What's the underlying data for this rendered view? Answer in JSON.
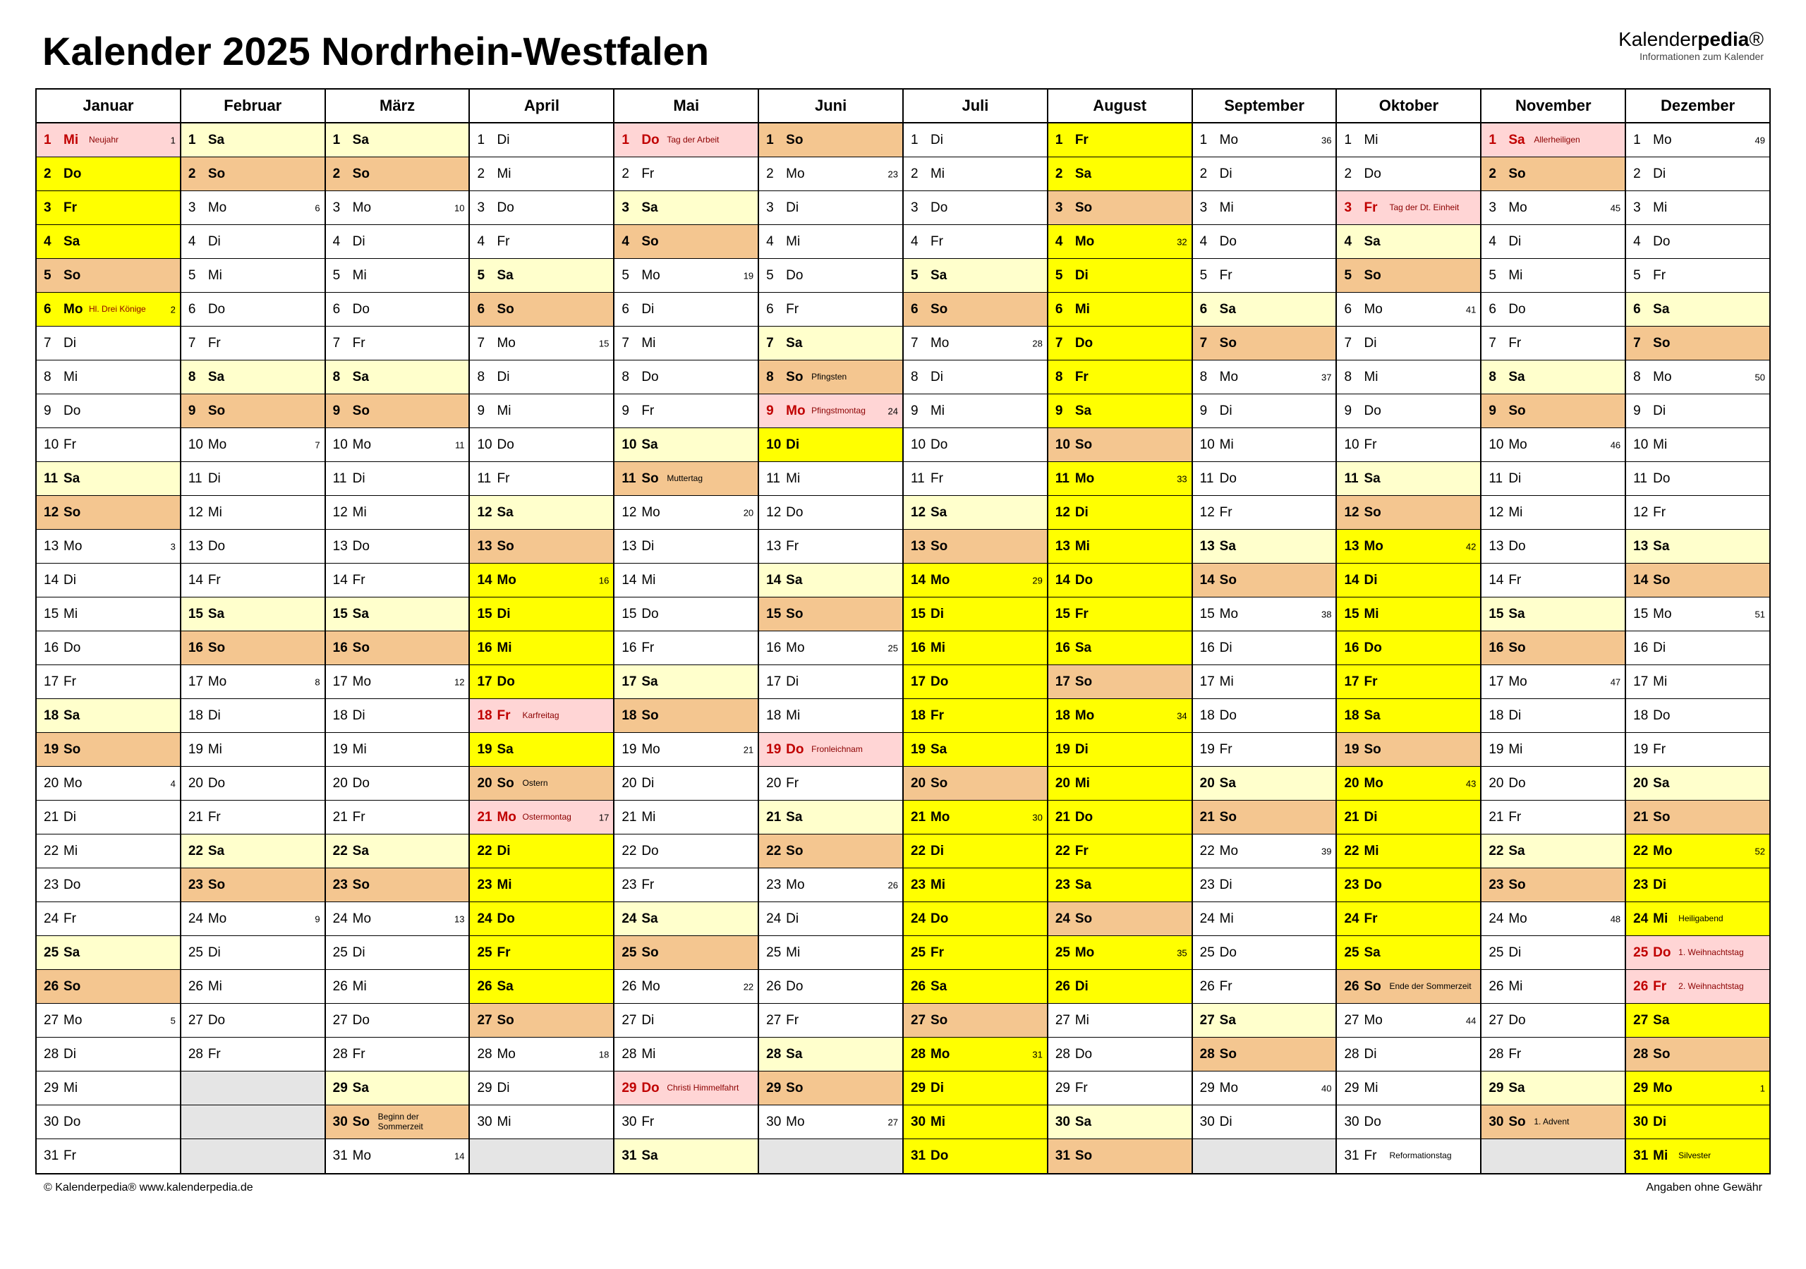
{
  "title": "Kalender 2025 Nordrhein-Westfalen",
  "logo": {
    "left": "Kalender",
    "bold": "pedia",
    "reg": "®",
    "sub": "Informationen zum Kalender"
  },
  "footer": {
    "left": "© Kalenderpedia®   www.kalenderpedia.de",
    "right": "Angaben ohne Gewähr"
  },
  "colors": {
    "yellow": "#ffff00",
    "lightyellow": "#ffffcc",
    "orange": "#f4c690",
    "darkorange": "#eeb070",
    "pink": "#ffd5d5",
    "grey": "#e5e5e5"
  },
  "weekdays": [
    "Mo",
    "Di",
    "Mi",
    "Do",
    "Fr",
    "Sa",
    "So"
  ],
  "months": [
    {
      "name": "Januar",
      "start": 2,
      "days": 31,
      "holidays": {
        "1": {
          "t": "Neujahr",
          "c": "pink",
          "r": 1,
          "w": 1
        },
        "6": {
          "t": "Hl. Drei Könige",
          "c": "yellow",
          "w": 2
        }
      },
      "vac": {
        "2": "yellow",
        "3": "yellow",
        "4": "yellow",
        "5": "orange",
        "6": "yellow"
      },
      "weeks": {
        "13": 3,
        "20": 4,
        "27": 5
      }
    },
    {
      "name": "Februar",
      "start": 5,
      "days": 28,
      "weeks": {
        "3": 6,
        "10": 7,
        "17": 8,
        "24": 9
      }
    },
    {
      "name": "März",
      "start": 5,
      "days": 31,
      "holidays": {
        "30": {
          "t": "Beginn der Sommerzeit",
          "c": "orange",
          "lb": 1
        }
      },
      "weeks": {
        "3": 10,
        "10": 11,
        "17": 12,
        "24": 13,
        "31": 14
      }
    },
    {
      "name": "April",
      "start": 1,
      "days": 30,
      "holidays": {
        "18": {
          "t": "Karfreitag",
          "c": "pink",
          "r": 1
        },
        "20": {
          "t": "Ostern",
          "c": "orange",
          "lb": 1
        },
        "21": {
          "t": "Ostermontag",
          "c": "pink",
          "r": 1,
          "w": 17
        }
      },
      "vac": {
        "14": "yellow",
        "15": "yellow",
        "16": "yellow",
        "17": "yellow",
        "19": "yellow",
        "22": "yellow",
        "23": "yellow",
        "24": "yellow",
        "25": "yellow",
        "26": "yellow",
        "27": "orange"
      },
      "weeks": {
        "7": 15,
        "14": 16,
        "28": 18
      }
    },
    {
      "name": "Mai",
      "start": 3,
      "days": 31,
      "holidays": {
        "1": {
          "t": "Tag der Arbeit",
          "c": "pink",
          "r": 1
        },
        "11": {
          "t": "Muttertag",
          "c": "orange",
          "lb": 1
        },
        "29": {
          "t": "Christi Himmelfahrt",
          "c": "pink",
          "r": 1
        }
      },
      "weeks": {
        "5": 19,
        "12": 20,
        "19": 21,
        "26": 22
      }
    },
    {
      "name": "Juni",
      "start": 6,
      "days": 30,
      "holidays": {
        "8": {
          "t": "Pfingsten",
          "c": "orange",
          "lb": 1
        },
        "9": {
          "t": "Pfingstmontag",
          "c": "pink",
          "r": 1,
          "w": 24
        },
        "10": {
          "c": "yellow"
        },
        "19": {
          "t": "Fronleichnam",
          "c": "pink",
          "r": 1
        }
      },
      "weeks": {
        "2": 23,
        "16": 25,
        "23": 26,
        "30": 27
      }
    },
    {
      "name": "Juli",
      "start": 1,
      "days": 31,
      "vac": {
        "14": "yellow",
        "15": "yellow",
        "16": "yellow",
        "17": "yellow",
        "18": "yellow",
        "19": "yellow",
        "20": "orange",
        "21": "yellow",
        "22": "yellow",
        "23": "yellow",
        "24": "yellow",
        "25": "yellow",
        "26": "yellow",
        "27": "orange",
        "28": "yellow",
        "29": "yellow",
        "30": "yellow",
        "31": "yellow"
      },
      "weeks": {
        "7": 28,
        "14": 29,
        "21": 30,
        "28": 31
      }
    },
    {
      "name": "August",
      "start": 4,
      "days": 31,
      "vac": {
        "1": "yellow",
        "2": "yellow",
        "3": "orange",
        "4": "yellow",
        "5": "yellow",
        "6": "yellow",
        "7": "yellow",
        "8": "yellow",
        "9": "yellow",
        "10": "orange",
        "11": "yellow",
        "12": "yellow",
        "13": "yellow",
        "14": "yellow",
        "15": "yellow",
        "16": "yellow",
        "17": "orange",
        "18": "yellow",
        "19": "yellow",
        "20": "yellow",
        "21": "yellow",
        "22": "yellow",
        "23": "yellow",
        "24": "orange",
        "25": "yellow",
        "26": "yellow"
      },
      "weeks": {
        "4": 32,
        "11": 33,
        "18": 34,
        "25": 35
      }
    },
    {
      "name": "September",
      "start": 0,
      "days": 30,
      "weeks": {
        "1": 36,
        "8": 37,
        "15": 38,
        "22": 39,
        "29": 40
      }
    },
    {
      "name": "Oktober",
      "start": 2,
      "days": 31,
      "holidays": {
        "3": {
          "t": "Tag der Dt. Einheit",
          "c": "pink",
          "r": 1
        },
        "26": {
          "t": "Ende der Sommerzeit",
          "c": "orange",
          "lb": 1
        },
        "31": {
          "t": "Reformationstag",
          "c": "",
          "lb": 1
        }
      },
      "vac": {
        "13": "yellow",
        "14": "yellow",
        "15": "yellow",
        "16": "yellow",
        "17": "yellow",
        "18": "yellow",
        "19": "orange",
        "20": "yellow",
        "21": "yellow",
        "22": "yellow",
        "23": "yellow",
        "24": "yellow",
        "25": "yellow"
      },
      "weeks": {
        "6": 41,
        "13": 42,
        "20": 43,
        "27": 44
      }
    },
    {
      "name": "November",
      "start": 5,
      "days": 30,
      "holidays": {
        "1": {
          "t": "Allerheiligen",
          "c": "pink",
          "r": 1
        },
        "30": {
          "t": "1. Advent",
          "c": "orange",
          "lb": 1
        }
      },
      "weeks": {
        "3": 45,
        "10": 46,
        "17": 47,
        "24": 48
      }
    },
    {
      "name": "Dezember",
      "start": 0,
      "days": 31,
      "holidays": {
        "24": {
          "t": "Heiligabend",
          "c": "yellow",
          "lb": 1
        },
        "25": {
          "t": "1. Weihnachtstag",
          "c": "pink",
          "r": 1
        },
        "26": {
          "t": "2. Weihnachtstag",
          "c": "pink",
          "r": 1
        },
        "31": {
          "t": "Silvester",
          "c": "yellow",
          "lb": 1
        }
      },
      "vac": {
        "22": "yellow",
        "23": "yellow",
        "27": "yellow",
        "28": "orange",
        "29": "yellow",
        "30": "yellow"
      },
      "weeks": {
        "1": 49,
        "8": 50,
        "15": 51,
        "22": 52,
        "29": 1
      }
    }
  ]
}
